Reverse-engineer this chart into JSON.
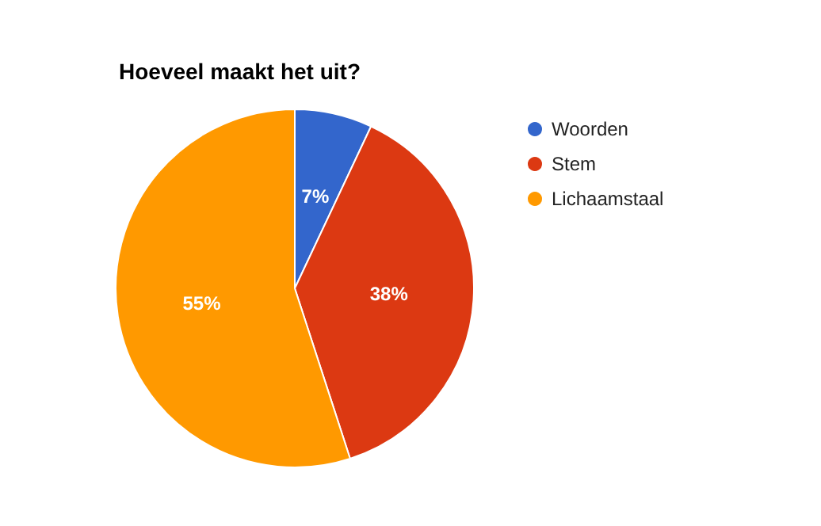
{
  "chart_data": {
    "type": "pie",
    "title": "Hoeveel maakt het uit?",
    "categories": [
      "Woorden",
      "Stem",
      "Lichaamstaal"
    ],
    "values": [
      7,
      38,
      55
    ],
    "colors": [
      "#3366cc",
      "#dc3912",
      "#ff9900"
    ],
    "value_labels": [
      "7%",
      "38%",
      "55%"
    ],
    "legend": "right"
  }
}
